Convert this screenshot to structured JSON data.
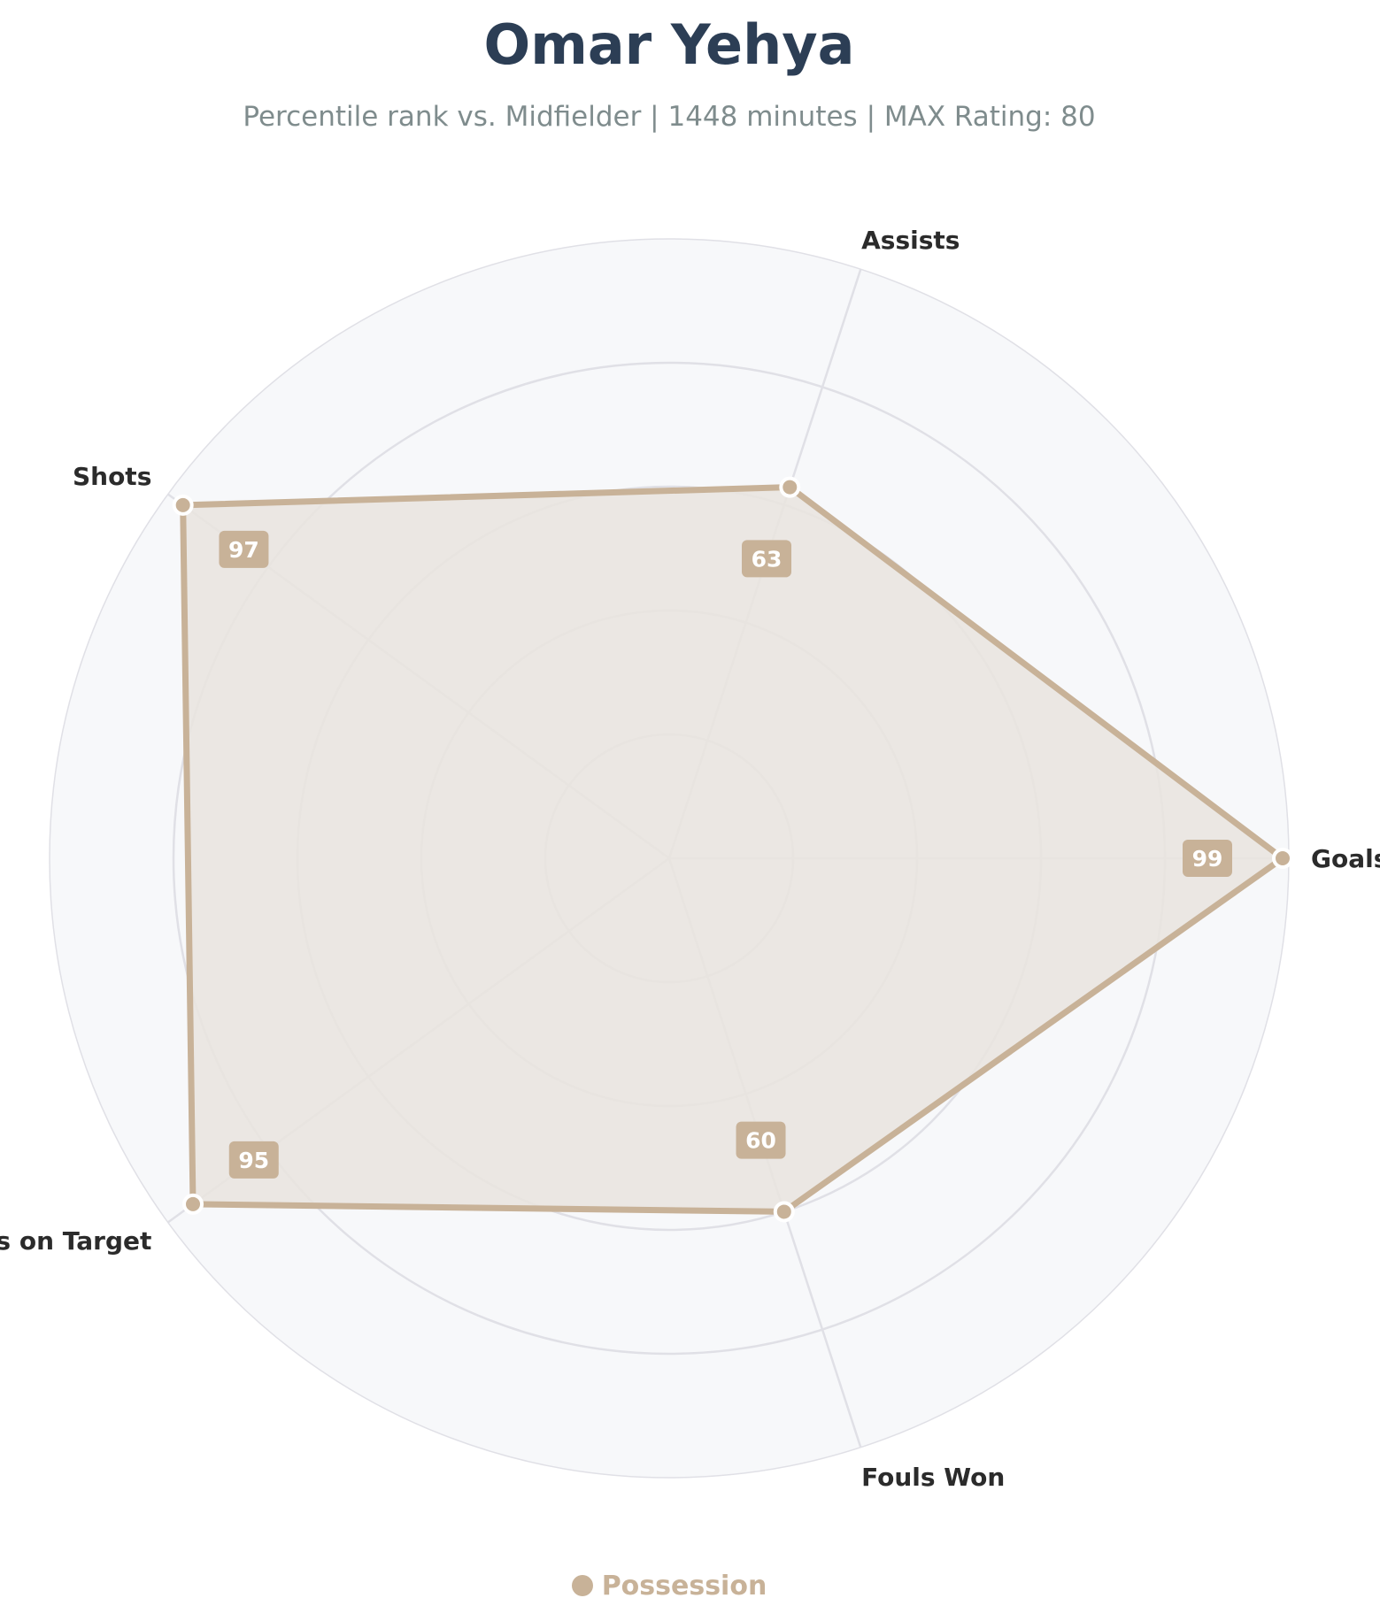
{
  "title": "Omar Yehya",
  "subtitle": "Percentile rank vs. Midfielder | 1448 minutes | MAX Rating: 80",
  "colors": {
    "series": "#c8b298",
    "fill": "#e9e4de",
    "background": "#f7f8fa",
    "grid": "#e0e0e6",
    "label_text": "#2b2b2b"
  },
  "chart_data": {
    "type": "radar",
    "categories": [
      "Goals",
      "Assists",
      "Shots",
      "Shots on Target",
      "Fouls Won"
    ],
    "series": [
      {
        "name": "Possession",
        "values": [
          99,
          63,
          97,
          95,
          60
        ]
      }
    ],
    "value_labels": [
      "99",
      "63",
      "97",
      "95",
      "60"
    ],
    "rlim": [
      0,
      100
    ],
    "rings": [
      20,
      40,
      60,
      80,
      100
    ],
    "grid": true,
    "legend_position": "bottom-center"
  },
  "legend": {
    "label": "Possession"
  }
}
